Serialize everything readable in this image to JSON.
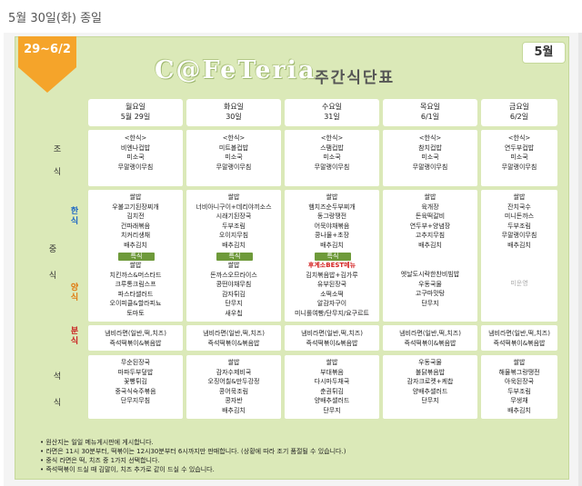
{
  "post": {
    "title": "5월 30일(화) 종일"
  },
  "card": {
    "period": "29~6/2",
    "month": "5월",
    "brand": "C@FeTeria",
    "subtitle": "주간식단표"
  },
  "days": [
    {
      "name": "월요일",
      "date": "5월 29일"
    },
    {
      "name": "화요일",
      "date": "30일"
    },
    {
      "name": "수요일",
      "date": "31일"
    },
    {
      "name": "목요일",
      "date": "6/1일"
    },
    {
      "name": "금요일",
      "date": "6/2일"
    }
  ],
  "labels": {
    "breakfast_1": "조",
    "breakfast_2": "식",
    "lunch_1": "중",
    "lunch_2": "식",
    "dinner_1": "석",
    "dinner_2": "식",
    "korean_1": "한",
    "korean_2": "식",
    "western_1": "양",
    "western_2": "식",
    "snack_1": "분",
    "snack_2": "식"
  },
  "special_label": "특식",
  "breakfast": [
    [
      "<한식>",
      "비엔나컵밥",
      "미소국",
      "무말랭이무침"
    ],
    [
      "<한식>",
      "미트볼컵밥",
      "미소국",
      "무말랭이무침"
    ],
    [
      "<한식>",
      "스팸컵밥",
      "미소국",
      "무말랭이무침"
    ],
    [
      "<한식>",
      "참치컵밥",
      "미소국",
      "무말랭이무침"
    ],
    [
      "<한식>",
      "연두부컵밥",
      "미소국",
      "무말랭이무침"
    ]
  ],
  "korean": [
    [
      "쌀밥",
      "우불고기된장찌개",
      "김치전",
      "건파래볶음",
      "치커리생채",
      "배추김치"
    ],
    [
      "쌀밥",
      "너비아니구이+데리야끼소스",
      "시래기된장국",
      "두부조림",
      "오이지무침",
      "배추김치"
    ],
    [
      "쌀밥",
      "햄치즈순두부찌개",
      "동그랑땡전",
      "어묵야채볶음",
      "콩나물+초장",
      "배추김치"
    ],
    [
      "쌀밥",
      "육개장",
      "돈육떡갈비",
      "연두부+양념장",
      "고추지무침",
      "배추김치"
    ],
    [
      "쌀밥",
      "잔치국수",
      "미니돈까스",
      "두부조림",
      "무말랭이무침",
      "배추김치"
    ]
  ],
  "western": [
    {
      "items": [
        "쌀밥",
        "치킨까스&머스타드",
        "크루통크림스프",
        "파스타샐러드",
        "오이피클&할라피뇨",
        "토마토"
      ]
    },
    {
      "items": [
        "쌀밥",
        "돈까스오므라이스",
        "콩떤야채무침",
        "감자튀김",
        "단무지",
        "새우칩"
      ]
    },
    {
      "items": [
        "후계소BEST메뉴",
        "김치볶음밥+김가루",
        "유부된장국",
        "소떡소떡",
        "알감자구이",
        "미니롤여빵/단무지/요구르트"
      ]
    },
    {
      "items": [
        "엣날도시락한찬비빔밥",
        "우동국물",
        "고구마맛탕",
        "단무지"
      ]
    },
    {
      "items": [
        "미운영"
      ]
    }
  ],
  "snack": [
    [
      "냄비라면(일반,떡,치즈)",
      "즉석떡볶이&볶음밥"
    ],
    [
      "냄비라면(일반,떡,치즈)",
      "즉석떡볶이&볶음밥"
    ],
    [
      "냄비라면(일반,떡,치즈)",
      "즉석떡볶이&볶음밥"
    ],
    [
      "냄비라면(일반,떡,치즈)",
      "즉석떡볶이&볶음밥"
    ],
    [
      "냄비라면(일반,떡,치즈)",
      "즉석떡볶이&볶음밥"
    ]
  ],
  "dinner": [
    [
      "무순된장국",
      "마파두부덮밥",
      "꽃빵튀김",
      "중국식숙주볶음",
      "단무지무침"
    ],
    [
      "쌀밥",
      "감자수제비국",
      "오징어칠&만두강정",
      "콩어묵조림",
      "콩자반",
      "배추김치"
    ],
    [
      "쌀밥",
      "부대볶음",
      "다시마두채국",
      "춘권튀김",
      "양배추샐러드",
      "단무지"
    ],
    [
      "우동국물",
      "불닭볶음밥",
      "감자크로켓+케찹",
      "양배추샐러드",
      "단무지"
    ],
    [
      "쌀밥",
      "해물볶그랑땡전",
      "아욱된장국",
      "두부조림",
      "무생채",
      "배추김치"
    ]
  ],
  "notes": [
    "• 원산지는 일일 메뉴게시판에 게시합니다.",
    "• 라면은 11시 30분부터, 떡볶이는 12시30분부터 6시까지만 판매합니다. (상황에 따라 조기 품절될 수 있습니다.)",
    "• 중식 라면은 떡, 치즈 중 1가지 선택합니다.",
    "• 즉석떡볶이 드실 때 김말이, 치즈 추가로 같이 드실 수 있습니다."
  ]
}
